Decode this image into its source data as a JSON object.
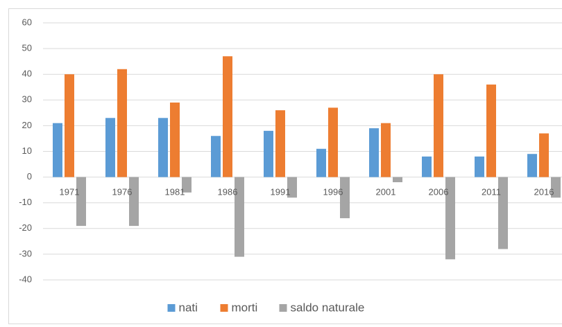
{
  "chart_data": {
    "type": "bar",
    "categories": [
      "1971",
      "1976",
      "1981",
      "1986",
      "1991",
      "1996",
      "2001",
      "2006",
      "2011",
      "2016"
    ],
    "series": [
      {
        "name": "nati",
        "color": "#5b9bd5",
        "values": [
          21,
          23,
          23,
          16,
          18,
          11,
          19,
          8,
          8,
          9
        ]
      },
      {
        "name": "morti",
        "color": "#ed7d31",
        "values": [
          40,
          42,
          29,
          47,
          26,
          27,
          21,
          40,
          36,
          17
        ]
      },
      {
        "name": "saldo naturale",
        "color": "#a5a5a5",
        "values": [
          -19,
          -19,
          -6,
          -31,
          -8,
          -16,
          -2,
          -32,
          -28,
          -8
        ]
      }
    ],
    "ylim": [
      -40,
      60
    ],
    "yticks": [
      -40,
      -30,
      -20,
      -10,
      0,
      10,
      20,
      30,
      40,
      50,
      60
    ],
    "grid": true,
    "legend": "bottom"
  }
}
